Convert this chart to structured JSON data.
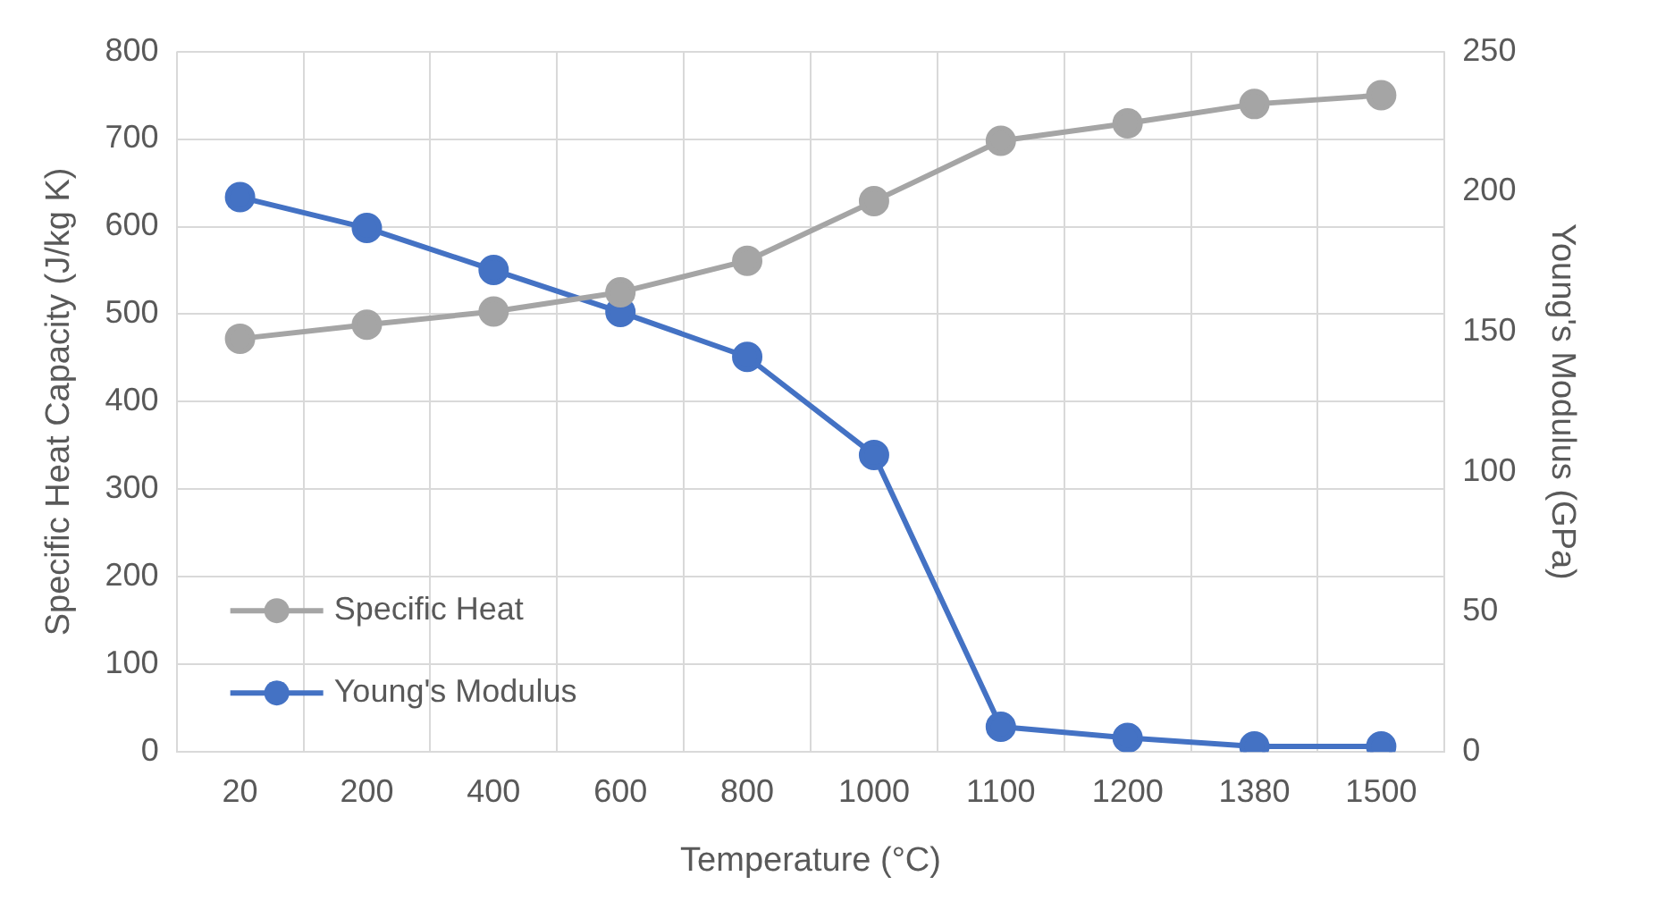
{
  "chart_data": {
    "type": "line",
    "xlabel": "Temperature (°C)",
    "ylabel": "Specific Heat Capacity (J/kg K)",
    "y2label": "Young's Modulus (GPa)",
    "categories": [
      "20",
      "200",
      "400",
      "600",
      "800",
      "1000",
      "1100",
      "1200",
      "1380",
      "1500"
    ],
    "series": [
      {
        "name": "Specific Heat",
        "color": "#a5a5a5",
        "values": [
          472,
          488,
          503,
          525,
          561,
          629,
          698,
          718,
          740,
          750
        ]
      },
      {
        "name": "Young's Modulus",
        "color": "#4472c4",
        "axis": "y2",
        "values": [
          198,
          187,
          172,
          157,
          141,
          106,
          9,
          5,
          2,
          2
        ]
      }
    ],
    "ylim": [
      0,
      800
    ],
    "yticks": [
      0,
      100,
      200,
      300,
      400,
      500,
      600,
      700,
      800
    ],
    "y2lim": [
      0,
      250
    ],
    "y2ticks": [
      0,
      50,
      100,
      150,
      200,
      250
    ],
    "grid": true,
    "legend": "bottom left",
    "marker": "circle",
    "line_style": "solid"
  }
}
